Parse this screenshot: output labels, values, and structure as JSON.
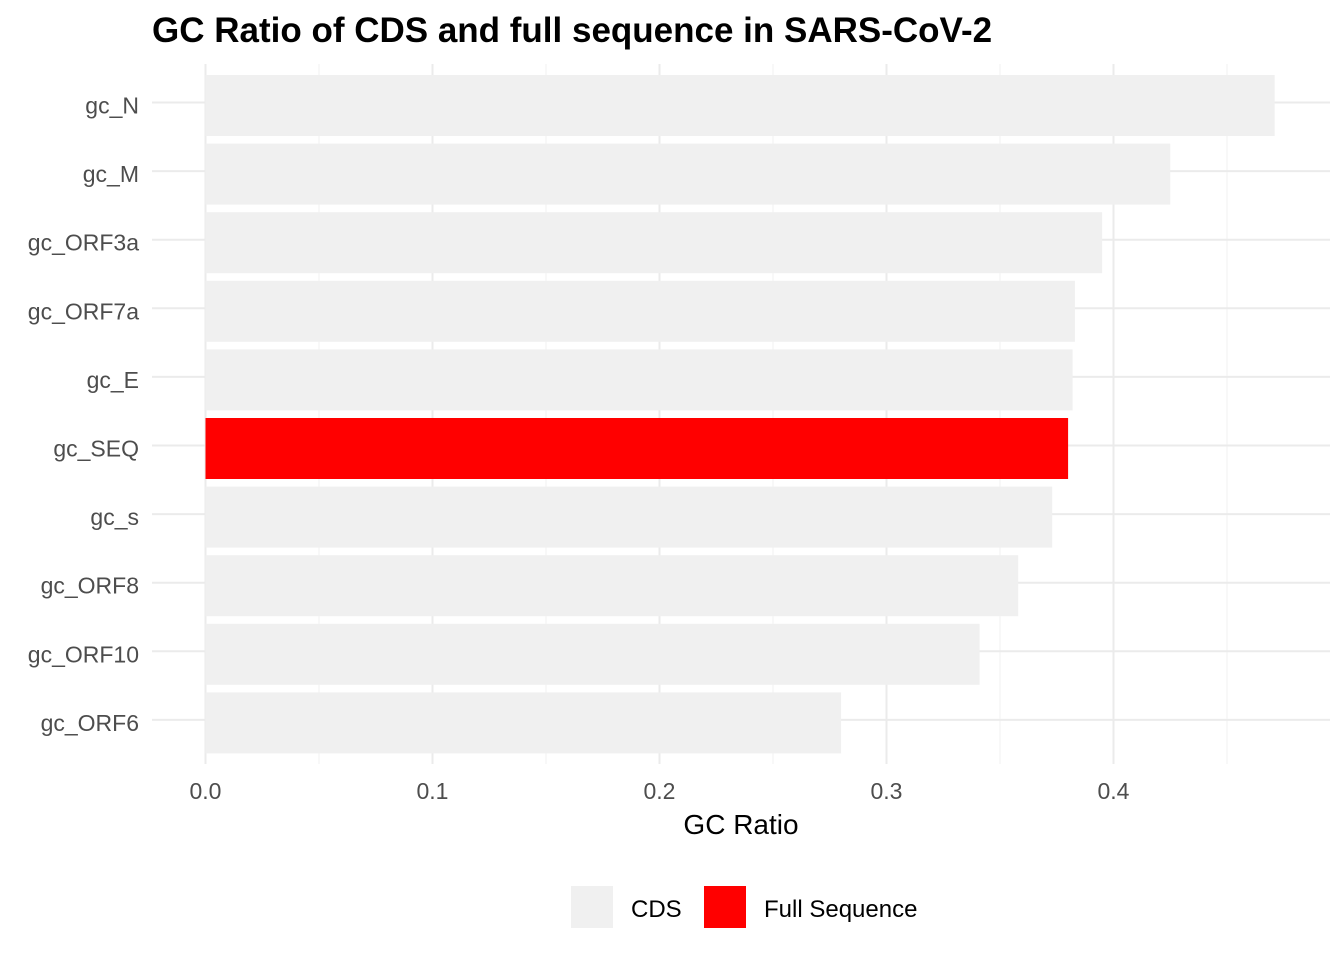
{
  "chart_data": {
    "type": "bar",
    "orientation": "horizontal",
    "title": "GC Ratio of CDS and full sequence in SARS-CoV-2",
    "xlabel": "GC Ratio",
    "ylabel": "",
    "xlim": [
      0,
      0.47
    ],
    "x_ticks": [
      "0.0",
      "0.1",
      "0.2",
      "0.3",
      "0.4"
    ],
    "x_tick_values": [
      0.0,
      0.1,
      0.2,
      0.3,
      0.4
    ],
    "grid": true,
    "legend_position": "bottom",
    "categories": [
      "gc_N",
      "gc_M",
      "gc_ORF3a",
      "gc_ORF7a",
      "gc_E",
      "gc_SEQ",
      "gc_s",
      "gc_ORF8",
      "gc_ORF10",
      "gc_ORF6"
    ],
    "values": [
      0.471,
      0.425,
      0.395,
      0.383,
      0.382,
      0.38,
      0.373,
      0.358,
      0.341,
      0.28
    ],
    "groups": [
      "CDS",
      "CDS",
      "CDS",
      "CDS",
      "CDS",
      "Full Sequence",
      "CDS",
      "CDS",
      "CDS",
      "CDS"
    ],
    "legend": [
      {
        "name": "CDS",
        "color": "#f0f0f0"
      },
      {
        "name": "Full Sequence",
        "color": "#ff0000"
      }
    ]
  }
}
